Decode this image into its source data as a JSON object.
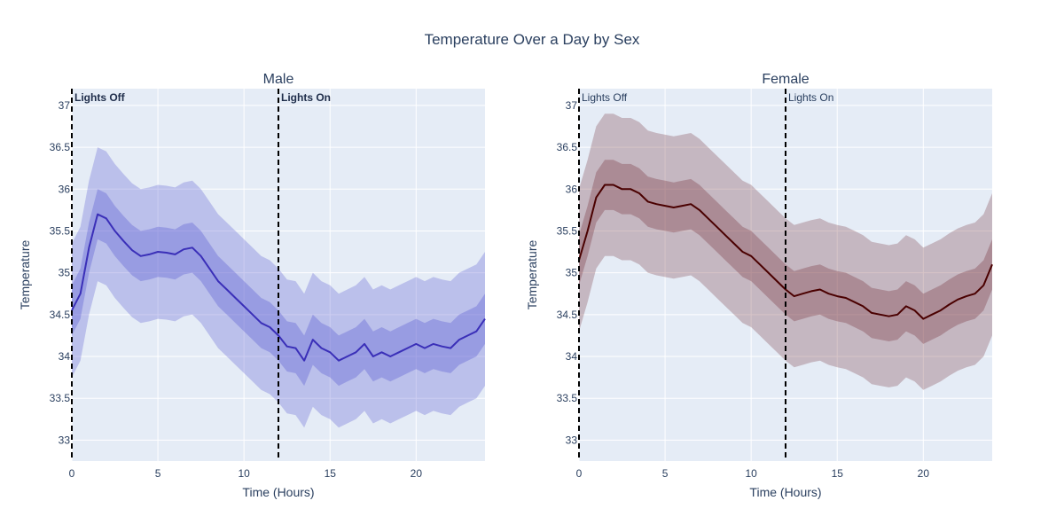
{
  "figure_title": "Temperature Over a Day by Sex",
  "colors": {
    "plot_bg": "#e5ecf6",
    "grid": "#ffffff",
    "text": "#2a3f5f",
    "male_line": "#3a2fb8",
    "male_band": "#5a5ad0",
    "female_line": "#4a0000",
    "female_band": "#7a3a44",
    "vline": "#000000"
  },
  "chart_data": [
    {
      "type": "line",
      "title": "Male",
      "xlabel": "Time (Hours)",
      "ylabel": "Temperature",
      "xlim": [
        0,
        24
      ],
      "ylim": [
        32.75,
        37.2
      ],
      "xticks": [
        0,
        5,
        10,
        15,
        20
      ],
      "xtick_labels": [
        "0",
        "5",
        "10",
        "15",
        "20"
      ],
      "yticks": [
        33,
        33.5,
        34,
        34.5,
        35,
        35.5,
        36,
        36.5,
        37
      ],
      "ytick_labels": [
        "33",
        "33.5",
        "34",
        "34.5",
        "35",
        "35.5",
        "36",
        "36.5",
        "37"
      ],
      "grid": true,
      "line_color": "#3a2fb8",
      "band_color": "#5a5ad0",
      "vlines": [
        {
          "x": 0,
          "label": "Lights Off"
        },
        {
          "x": 12,
          "label": "Lights On"
        }
      ],
      "series": [
        {
          "x": [
            0,
            0.5,
            1,
            1.5,
            2,
            2.5,
            3,
            3.5,
            4,
            4.5,
            5,
            5.5,
            6,
            6.5,
            7,
            7.5,
            8,
            8.5,
            9,
            9.5,
            10,
            10.5,
            11,
            11.5,
            12,
            12.5,
            13,
            13.5,
            14,
            14.5,
            15,
            15.5,
            16,
            16.5,
            17,
            17.5,
            18,
            18.5,
            19,
            19.5,
            20,
            20.5,
            21,
            21.5,
            22,
            22.5,
            23,
            23.5,
            24
          ],
          "y": [
            34.55,
            34.75,
            35.3,
            35.7,
            35.65,
            35.5,
            35.38,
            35.27,
            35.2,
            35.22,
            35.25,
            35.24,
            35.22,
            35.28,
            35.3,
            35.2,
            35.05,
            34.9,
            34.8,
            34.7,
            34.6,
            34.5,
            34.4,
            34.35,
            34.25,
            34.12,
            34.1,
            33.95,
            34.2,
            34.1,
            34.05,
            33.95,
            34.0,
            34.05,
            34.15,
            34.0,
            34.05,
            34.0,
            34.05,
            34.1,
            34.15,
            34.1,
            34.15,
            34.12,
            34.1,
            34.2,
            34.25,
            34.3,
            34.45
          ],
          "inner_band": 0.3,
          "outer_band": 0.8
        }
      ]
    },
    {
      "type": "line",
      "title": "Female",
      "xlabel": "Time (Hours)",
      "ylabel": "Temperature",
      "xlim": [
        0,
        24
      ],
      "ylim": [
        32.75,
        37.2
      ],
      "xticks": [
        0,
        5,
        10,
        15,
        20
      ],
      "xtick_labels": [
        "0",
        "5",
        "10",
        "15",
        "20"
      ],
      "yticks": [
        33,
        33.5,
        34,
        34.5,
        35,
        35.5,
        36,
        36.5,
        37
      ],
      "ytick_labels": [
        "33",
        "33.5",
        "34",
        "34.5",
        "35",
        "35.5",
        "36",
        "36.5",
        "37"
      ],
      "grid": true,
      "line_color": "#4a0000",
      "band_color": "#7a3a44",
      "vlines": [
        {
          "x": 0,
          "label": "Lights Off"
        },
        {
          "x": 12,
          "label": "Lights On"
        }
      ],
      "series": [
        {
          "x": [
            0,
            0.5,
            1,
            1.5,
            2,
            2.5,
            3,
            3.5,
            4,
            4.5,
            5,
            5.5,
            6,
            6.5,
            7,
            7.5,
            8,
            8.5,
            9,
            9.5,
            10,
            10.5,
            11,
            11.5,
            12,
            12.5,
            13,
            13.5,
            14,
            14.5,
            15,
            15.5,
            16,
            16.5,
            17,
            17.5,
            18,
            18.5,
            19,
            19.5,
            20,
            20.5,
            21,
            21.5,
            22,
            22.5,
            23,
            23.5,
            24
          ],
          "y": [
            35.15,
            35.5,
            35.9,
            36.05,
            36.05,
            36.0,
            36.0,
            35.95,
            35.85,
            35.82,
            35.8,
            35.78,
            35.8,
            35.82,
            35.75,
            35.65,
            35.55,
            35.45,
            35.35,
            35.25,
            35.2,
            35.1,
            35.0,
            34.9,
            34.8,
            34.72,
            34.75,
            34.78,
            34.8,
            34.75,
            34.72,
            34.7,
            34.65,
            34.6,
            34.52,
            34.5,
            34.48,
            34.5,
            34.6,
            34.55,
            34.45,
            34.5,
            34.55,
            34.62,
            34.68,
            34.72,
            34.75,
            34.85,
            35.1
          ],
          "inner_band": 0.3,
          "outer_band": 0.85
        }
      ]
    }
  ]
}
